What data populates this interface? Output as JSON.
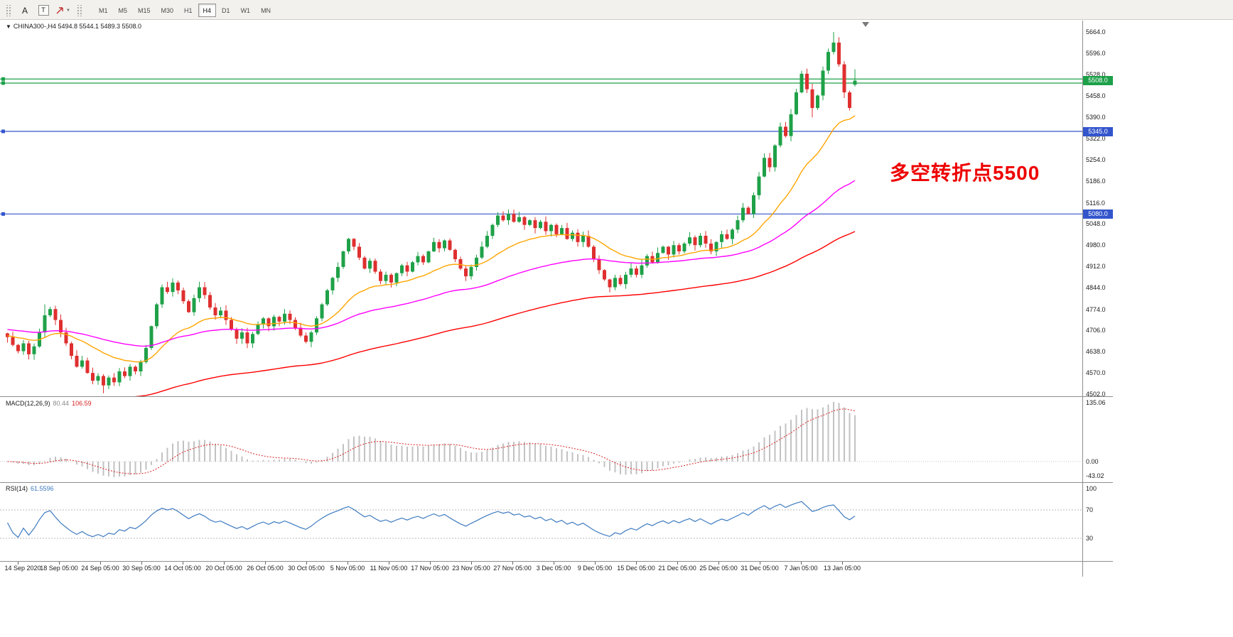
{
  "toolbar": {
    "tools": [
      {
        "name": "text",
        "label": "A"
      },
      {
        "name": "text-label",
        "label": "T"
      },
      {
        "name": "arrows",
        "label": ""
      }
    ],
    "timeframes": [
      "M1",
      "M5",
      "M15",
      "M30",
      "H1",
      "H4",
      "D1",
      "W1",
      "MN"
    ],
    "active_timeframe": "H4"
  },
  "chart_data": {
    "type": "candlestick",
    "symbol": "CHINA300-",
    "timeframe": "H4",
    "title": "CHINA300-,H4 5494.8 5544.1 5489.3 5508.0",
    "last_bar": {
      "open": 5494.8,
      "high": 5544.1,
      "low": 5489.3,
      "close": 5508.0
    },
    "price_range": [
      4502,
      5664
    ],
    "y_labels": [
      "5664.0",
      "5596.0",
      "5528.0",
      "5458.0",
      "5390.0",
      "5322.0",
      "5254.0",
      "5186.0",
      "5116.0",
      "5048.0",
      "4980.0",
      "4912.0",
      "4844.0",
      "4774.0",
      "4706.0",
      "4638.0",
      "4570.0",
      "4502.0"
    ],
    "x_labels": [
      "14 Sep 2020",
      "18 Sep 05:00",
      "24 Sep 05:00",
      "30 Sep 05:00",
      "14 Oct 05:00",
      "20 Oct 05:00",
      "26 Oct 05:00",
      "30 Oct 05:00",
      "5 Nov 05:00",
      "11 Nov 05:00",
      "17 Nov 05:00",
      "23 Nov 05:00",
      "27 Nov 05:00",
      "3 Dec 05:00",
      "9 Dec 05:00",
      "15 Dec 05:00",
      "21 Dec 05:00",
      "25 Dec 05:00",
      "31 Dec 05:00",
      "7 Jan 05:00",
      "13 Jan 05:00"
    ],
    "closes": [
      4685,
      4660,
      4640,
      4665,
      4630,
      4655,
      4700,
      4755,
      4775,
      4740,
      4700,
      4665,
      4625,
      4590,
      4610,
      4570,
      4545,
      4560,
      4530,
      4555,
      4540,
      4575,
      4560,
      4590,
      4575,
      4605,
      4650,
      4720,
      4790,
      4845,
      4830,
      4860,
      4835,
      4800,
      4765,
      4810,
      4845,
      4820,
      4780,
      4755,
      4770,
      4740,
      4710,
      4680,
      4700,
      4665,
      4695,
      4725,
      4745,
      4720,
      4750,
      4735,
      4760,
      4740,
      4715,
      4690,
      4670,
      4700,
      4745,
      4790,
      4835,
      4875,
      4910,
      4960,
      5000,
      4975,
      4940,
      4905,
      4930,
      4895,
      4865,
      4885,
      4860,
      4890,
      4915,
      4895,
      4925,
      4945,
      4925,
      4960,
      4990,
      4970,
      4995,
      4965,
      4935,
      4905,
      4880,
      4910,
      4940,
      4975,
      5010,
      5045,
      5075,
      5060,
      5080,
      5055,
      5070,
      5045,
      5060,
      5035,
      5055,
      5025,
      5045,
      5015,
      5035,
      5000,
      5020,
      4990,
      5010,
      4975,
      4935,
      4900,
      4870,
      4845,
      4875,
      4855,
      4885,
      4905,
      4885,
      4915,
      4945,
      4925,
      4955,
      4975,
      4950,
      4980,
      4960,
      4985,
      5005,
      4980,
      5010,
      4985,
      4960,
      4990,
      5015,
      5000,
      5030,
      5060,
      5100,
      5080,
      5140,
      5200,
      5260,
      5230,
      5300,
      5360,
      5330,
      5400,
      5470,
      5530,
      5480,
      5420,
      5460,
      5540,
      5600,
      5630,
      5560,
      5470,
      5420,
      5508
    ],
    "candle_overrides": {
      "7": [
        4700,
        4790,
        4685,
        4755
      ],
      "18": [
        4560,
        4566,
        4505,
        4530
      ],
      "151": [
        5480,
        5498,
        5390,
        5420
      ],
      "155": [
        5600,
        5664,
        5592,
        5630
      ],
      "159": [
        5494.8,
        5544.1,
        5489.3,
        5508.0
      ]
    },
    "colors": {
      "up": "#1fa148",
      "down": "#df2f2f",
      "ma_fast": "#ffa500",
      "ma_mid": "#ff00ff",
      "ma_slow": "#ff0000",
      "hline_green": "#1ca049",
      "hline_blue": "#3355cc",
      "macd_hist": "#c2c2c2",
      "macd_signal": "#d92222",
      "rsi_line": "#3e7bc0",
      "annotation": "#ee0000"
    },
    "horizontal_lines": [
      {
        "price": 5513,
        "color": "#1ca049"
      },
      {
        "price": 5500,
        "color": "#1ca049"
      },
      {
        "price": 5508,
        "color": "#1ca049",
        "line": false,
        "badge": "5508.0"
      },
      {
        "price": 5345,
        "color": "#3355cc",
        "badge": "5345.0"
      },
      {
        "price": 5080,
        "color": "#3355cc",
        "badge": "5080.0"
      }
    ],
    "annotations": [
      {
        "text": "多空转折点5500",
        "color": "#ee0000"
      }
    ],
    "indicators": {
      "macd": {
        "label": "MACD(12,26,9)",
        "value": "80.44",
        "signal_value": "106.59",
        "axis_labels": [
          "135.06",
          "0.00",
          "-43.02"
        ]
      },
      "rsi": {
        "label": "RSI(14)",
        "value": "61.5596",
        "axis_labels": [
          "100",
          "70",
          "30"
        ],
        "levels": [
          70,
          30
        ]
      },
      "moving_averages": [
        {
          "color": "#ffa500"
        },
        {
          "color": "#ff00ff"
        },
        {
          "color": "#ff0000"
        }
      ]
    }
  }
}
